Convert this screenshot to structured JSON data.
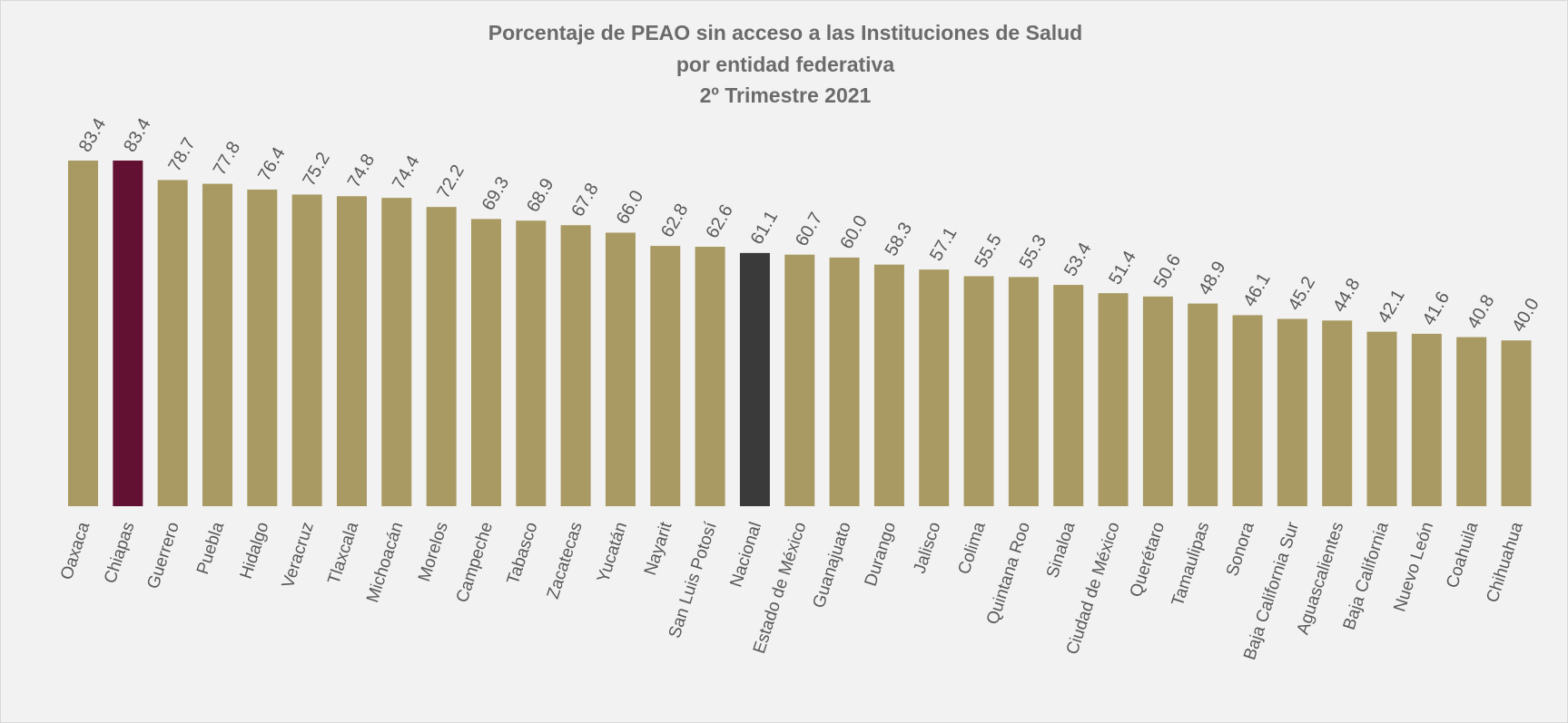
{
  "chart_data": {
    "type": "bar",
    "title": [
      "Porcentaje de PEAO sin acceso a las Instituciones de Salud",
      "por entidad federativa",
      "2º Trimestre 2021"
    ],
    "categories": [
      "Oaxaca",
      "Chiapas",
      "Guerrero",
      "Puebla",
      "Hidalgo",
      "Veracruz",
      "Tlaxcala",
      "Michoacán",
      "Morelos",
      "Campeche",
      "Tabasco",
      "Zacatecas",
      "Yucatán",
      "Nayarit",
      "San Luis Potosí",
      "Nacional",
      "Estado de México",
      "Guanajuato",
      "Durango",
      "Jalisco",
      "Colima",
      "Quintana Roo",
      "Sinaloa",
      "Ciudad de México",
      "Querétaro",
      "Tamaulipas",
      "Sonora",
      "Baja California Sur",
      "Aguascalientes",
      "Baja California",
      "Nuevo León",
      "Coahuila",
      "Chihuahua"
    ],
    "values": [
      83.4,
      83.4,
      78.7,
      77.8,
      76.4,
      75.2,
      74.8,
      74.4,
      72.2,
      69.3,
      68.9,
      67.8,
      66,
      62.8,
      62.6,
      61.1,
      60.7,
      60,
      58.3,
      57.1,
      55.5,
      55.3,
      53.4,
      51.4,
      50.6,
      48.9,
      46.1,
      45.2,
      44.8,
      42.1,
      41.6,
      40.8,
      40
    ],
    "value_labels": [
      "83.4",
      "83.4",
      "78.7",
      "77.8",
      "76.4",
      "75.2",
      "74.8",
      "74.4",
      "72.2",
      "69.3",
      "68.9",
      "67.8",
      "66.0",
      "62.8",
      "62.6",
      "61.1",
      "60.7",
      "60.0",
      "58.3",
      "57.1",
      "55.5",
      "55.3",
      "53.4",
      "51.4",
      "50.6",
      "48.9",
      "46.1",
      "45.2",
      "44.8",
      "42.1",
      "41.6",
      "40.8",
      "40.0"
    ],
    "colors": [
      "#a89a62",
      "#621132",
      "#a89a62",
      "#a89a62",
      "#a89a62",
      "#a89a62",
      "#a89a62",
      "#a89a62",
      "#a89a62",
      "#a89a62",
      "#a89a62",
      "#a89a62",
      "#a89a62",
      "#a89a62",
      "#a89a62",
      "#3a3a3a",
      "#a89a62",
      "#a89a62",
      "#a89a62",
      "#a89a62",
      "#a89a62",
      "#a89a62",
      "#a89a62",
      "#a89a62",
      "#a89a62",
      "#a89a62",
      "#a89a62",
      "#a89a62",
      "#a89a62",
      "#a89a62",
      "#a89a62",
      "#a89a62",
      "#a89a62"
    ]
  }
}
